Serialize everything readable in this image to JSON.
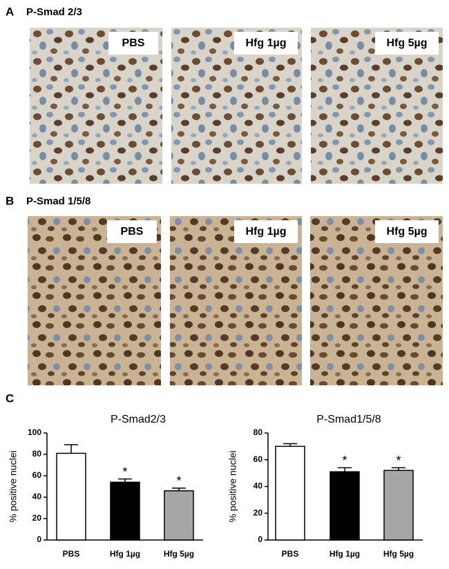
{
  "panels": [
    {
      "label": "A",
      "title": "P-Smad 2/3",
      "images": [
        "PBS",
        "Hfg 1µg",
        "Hfg 5µg"
      ]
    },
    {
      "label": "B",
      "title": "P-Smad 1/5/8",
      "images": [
        "PBS",
        "Hfg 1µg",
        "Hfg 5µg"
      ]
    }
  ],
  "panel_c_label": "C",
  "chart_data": [
    {
      "type": "bar",
      "title": "P-Smad2/3",
      "y_label": "% positive nuclei",
      "categories": [
        "PBS",
        "Hfg 1µg",
        "Hfg 5µg"
      ],
      "values": [
        81,
        54,
        46
      ],
      "errors": [
        8,
        3,
        2.5
      ],
      "colors": [
        "#ffffff",
        "#000000",
        "#a6a6a6"
      ],
      "significance": [
        null,
        "*",
        "*"
      ],
      "ylim": [
        0,
        100
      ],
      "yticks": [
        0,
        20,
        40,
        60,
        80,
        100
      ]
    },
    {
      "type": "bar",
      "title": "P-Smad1/5/8",
      "y_label": "% positive nuclei",
      "categories": [
        "PBS",
        "Hfg 1µg",
        "Hfg 5µg"
      ],
      "values": [
        70,
        51,
        52
      ],
      "errors": [
        2,
        3,
        2
      ],
      "colors": [
        "#ffffff",
        "#000000",
        "#a6a6a6"
      ],
      "significance": [
        null,
        "*",
        "*"
      ],
      "ylim": [
        0,
        80
      ],
      "yticks": [
        0,
        20,
        40,
        60,
        80
      ]
    }
  ]
}
